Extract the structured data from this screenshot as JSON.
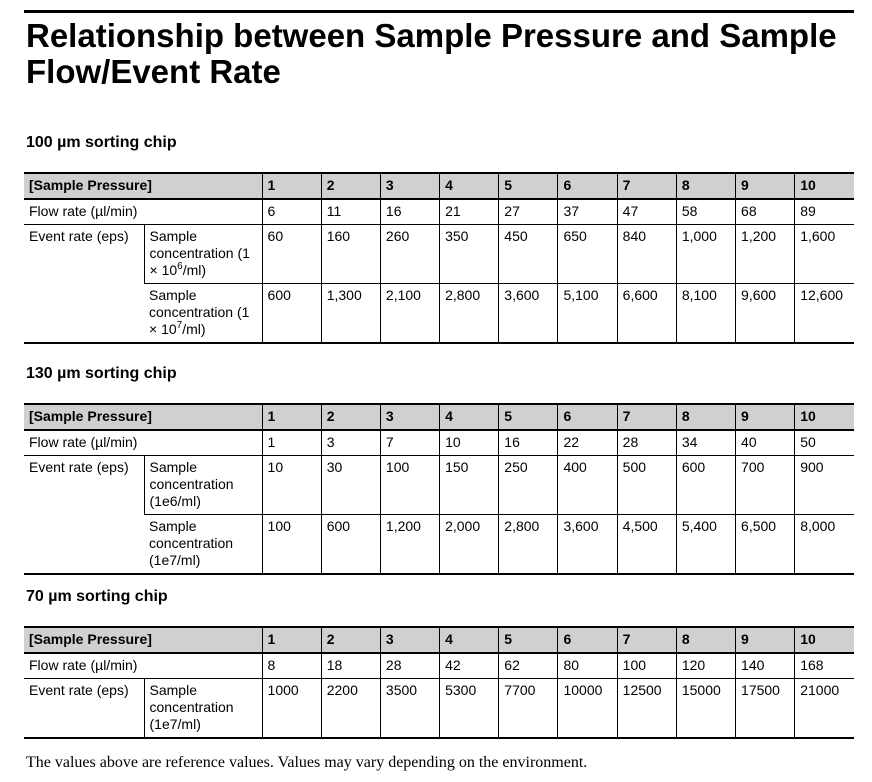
{
  "title": "Relationship between Sample Pressure and Sample Flow/Event Rate",
  "tables": [
    {
      "heading": "100 µm sorting chip",
      "header_label": "[Sample Pressure]",
      "pressures": [
        "1",
        "2",
        "3",
        "4",
        "5",
        "6",
        "7",
        "8",
        "9",
        "10"
      ],
      "flow_label": "Flow rate (µl/min)",
      "flow": [
        "6",
        "11",
        "16",
        "21",
        "27",
        "37",
        "47",
        "58",
        "68",
        "89"
      ],
      "event_label": "Event rate (eps)",
      "event_rows": [
        {
          "conc_label": "Sample concentration (1 × 10",
          "conc_exp": "6",
          "conc_suffix": "/ml)",
          "values": [
            "60",
            "160",
            "260",
            "350",
            "450",
            "650",
            "840",
            "1,000",
            "1,200",
            "1,600"
          ]
        },
        {
          "conc_label": "Sample concentration (1 × 10",
          "conc_exp": "7",
          "conc_suffix": "/ml)",
          "values": [
            "600",
            "1,300",
            "2,100",
            "2,800",
            "3,600",
            "5,100",
            "6,600",
            "8,100",
            "9,600",
            "12,600"
          ]
        }
      ]
    },
    {
      "heading": "130 µm sorting chip",
      "header_label": "[Sample Pressure]",
      "pressures": [
        "1",
        "2",
        "3",
        "4",
        "5",
        "6",
        "7",
        "8",
        "9",
        "10"
      ],
      "flow_label": "Flow rate (µl/min)",
      "flow": [
        "1",
        "3",
        "7",
        "10",
        "16",
        "22",
        "28",
        "34",
        "40",
        "50"
      ],
      "event_label": "Event rate (eps)",
      "event_rows": [
        {
          "conc_label": "Sample concentration (1e6/ml)",
          "values": [
            "10",
            "30",
            "100",
            "150",
            "250",
            "400",
            "500",
            "600",
            "700",
            "900"
          ]
        },
        {
          "conc_label": "Sample concentration (1e7/ml)",
          "values": [
            "100",
            "600",
            "1,200",
            "2,000",
            "2,800",
            "3,600",
            "4,500",
            "5,400",
            "6,500",
            "8,000"
          ]
        }
      ]
    },
    {
      "heading": "70 µm sorting chip",
      "header_label": "[Sample Pressure]",
      "pressures": [
        "1",
        "2",
        "3",
        "4",
        "5",
        "6",
        "7",
        "8",
        "9",
        "10"
      ],
      "flow_label": "Flow rate (µl/min)",
      "flow": [
        "8",
        "18",
        "28",
        "42",
        "62",
        "80",
        "100",
        "120",
        "140",
        "168"
      ],
      "event_label": "Event rate (eps)",
      "event_rows": [
        {
          "conc_label": "Sample concentration (1e7/ml)",
          "values": [
            "1000",
            "2200",
            "3500",
            "5300",
            "7700",
            "10000",
            "12500",
            "15000",
            "17500",
            "21000"
          ]
        }
      ]
    }
  ],
  "note": "The values above are reference values. Values may vary depending on the environment.",
  "colors": {
    "header_bg": "#d0d0d0",
    "rule": "#000000"
  }
}
